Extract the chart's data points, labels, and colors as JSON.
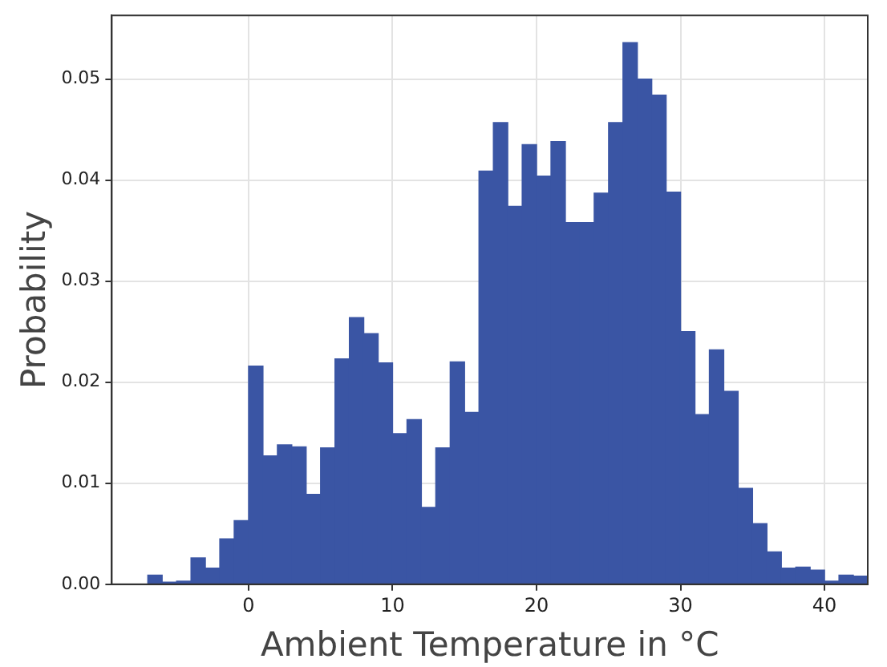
{
  "chart_data": {
    "type": "histogram",
    "xlabel": "Ambient Temperature in °C",
    "ylabel": "Probability",
    "bins": [
      -7,
      -6,
      -5,
      -4,
      -3,
      -2,
      -1,
      0,
      1,
      2,
      3,
      4,
      5,
      6,
      7,
      8,
      9,
      10,
      11,
      12,
      13,
      14,
      15,
      16,
      17,
      18,
      19,
      20,
      21,
      22,
      23,
      24,
      25,
      26,
      27,
      28,
      29,
      30,
      31,
      32,
      33,
      34,
      35,
      36,
      37,
      38,
      39,
      40,
      41,
      42,
      43
    ],
    "values": [
      0.0009,
      0.0002,
      0.0003,
      0.0026,
      0.0016,
      0.0045,
      0.0063,
      0.0216,
      0.0127,
      0.0138,
      0.0136,
      0.0089,
      0.0135,
      0.0223,
      0.0264,
      0.0248,
      0.0219,
      0.0149,
      0.0163,
      0.0076,
      0.0135,
      0.022,
      0.017,
      0.0409,
      0.0457,
      0.0374,
      0.0435,
      0.0404,
      0.0438,
      0.0358,
      0.0358,
      0.0387,
      0.0457,
      0.0536,
      0.05,
      0.0484,
      0.0388,
      0.025,
      0.0168,
      0.0232,
      0.0191,
      0.0095,
      0.006,
      0.0032,
      0.0016,
      0.0017,
      0.0014,
      0.0003,
      0.0009,
      0.0008
    ],
    "color": "#3a55a4",
    "xlim": [
      -9.5,
      43
    ],
    "ylim": [
      0,
      0.0563
    ],
    "xticks": [
      0,
      10,
      20,
      30,
      40
    ],
    "yticks": [
      {
        "value": 0,
        "label": "0.00"
      },
      {
        "value": 0.01,
        "label": "0.01"
      },
      {
        "value": 0.02,
        "label": "0.02"
      },
      {
        "value": 0.03,
        "label": "0.03"
      },
      {
        "value": 0.04,
        "label": "0.04"
      },
      {
        "value": 0.05,
        "label": "0.05"
      }
    ],
    "grid": true,
    "legend": false
  }
}
